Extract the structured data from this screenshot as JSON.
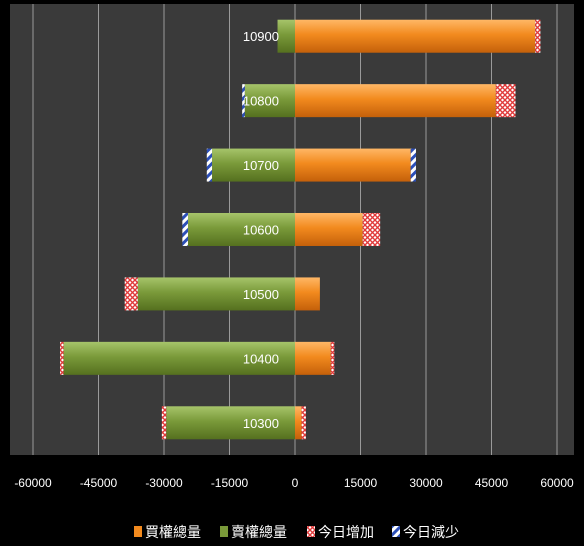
{
  "chart_data": {
    "type": "bar",
    "orientation": "horizontal",
    "stacked": true,
    "categories": [
      "10900",
      "10800",
      "10700",
      "10600",
      "10500",
      "10400",
      "10300"
    ],
    "xlim": [
      -60000,
      60000
    ],
    "xticks": [
      -60000,
      -45000,
      -30000,
      -15000,
      0,
      15000,
      30000,
      45000,
      60000
    ],
    "grid": true,
    "legend_position": "bottom",
    "series": [
      {
        "name": "買權總量",
        "color": "#f28a1e",
        "side": "positive",
        "values": [
          55000,
          46000,
          26500,
          15500,
          5700,
          8200,
          1500
        ]
      },
      {
        "name": "賣權總量",
        "color": "#7a9a3a",
        "side": "negative",
        "values": [
          -4000,
          -11500,
          -19000,
          -24500,
          -36000,
          -53000,
          -29500
        ]
      },
      {
        "name": "今日增加",
        "color": "#e03a3a",
        "pattern": "crosshatch",
        "values": [
          1200,
          4500,
          0,
          4000,
          3000,
          800,
          1000
        ]
      },
      {
        "name": "今日減少",
        "color": "#2c4fb8",
        "pattern": "diagonal",
        "values": [
          0,
          600,
          1200,
          1300,
          0,
          0,
          0
        ]
      }
    ],
    "chart_bg": "#3a3a3a",
    "text_color": "#ffffff"
  }
}
